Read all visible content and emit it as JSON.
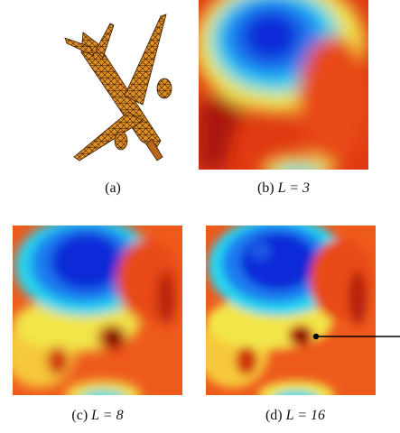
{
  "panels": [
    {
      "id": "a",
      "caption_label": "(a)",
      "caption_math": ""
    },
    {
      "id": "b",
      "caption_label": "(b)",
      "caption_math": "L = 3"
    },
    {
      "id": "c",
      "caption_label": "(c)",
      "caption_math": "L = 8"
    },
    {
      "id": "d",
      "caption_label": "(d)",
      "caption_math": "L = 16"
    }
  ],
  "colors": {
    "blue": "#0a2cd8",
    "cyan": "#26d6ef",
    "yellow": "#f2e54a",
    "orange": "#f05a1a",
    "red": "#d7260f",
    "darkred": "#7a1208",
    "mesh": "#d98a22"
  }
}
